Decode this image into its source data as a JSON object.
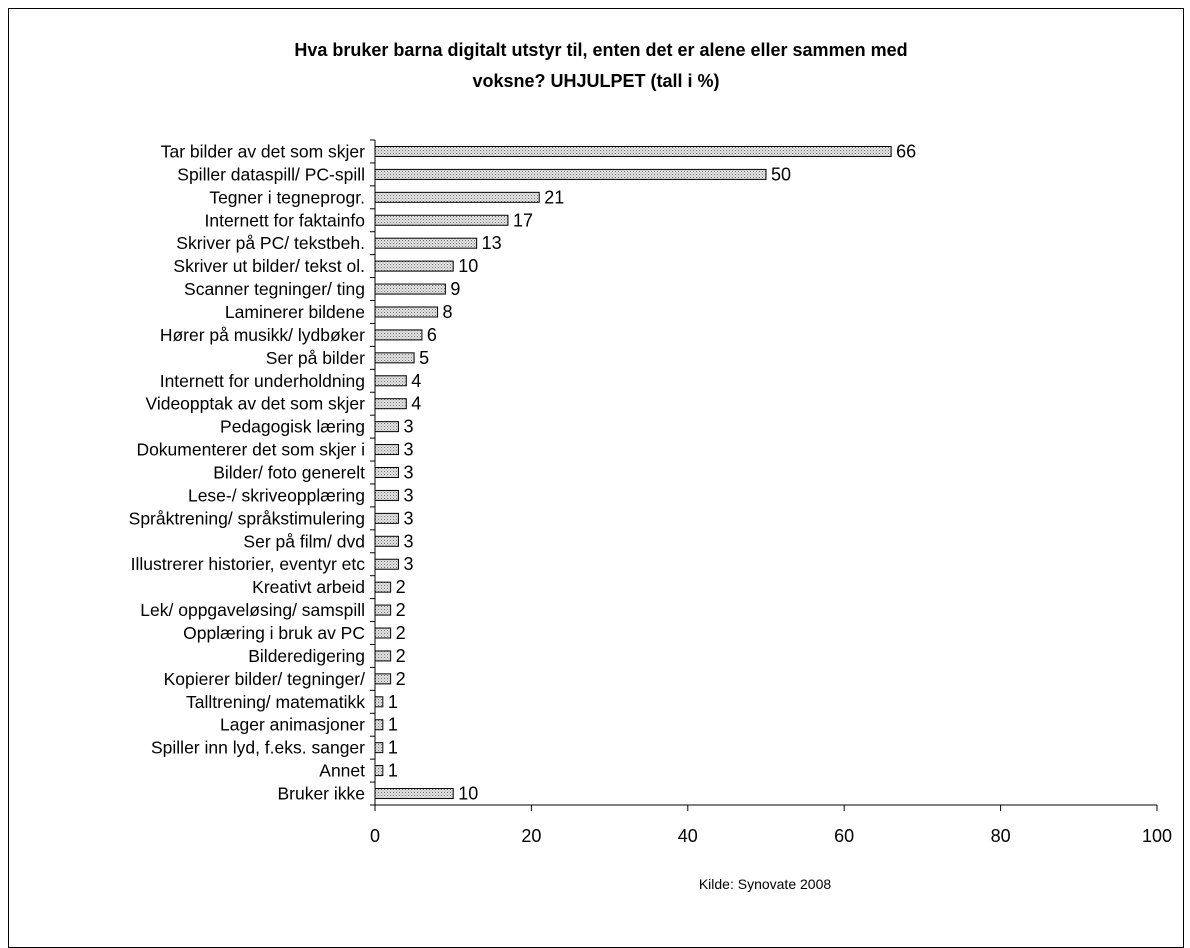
{
  "chart_data": {
    "type": "bar",
    "orientation": "horizontal",
    "title_lines": [
      "Hva bruker barna digitalt utstyr til, enten det er alene eller sammen med",
      "voksne? UHJULPET (tall i %)"
    ],
    "categories": [
      "Tar bilder av det som skjer",
      "Spiller dataspill/ PC-spill",
      "Tegner i tegneprogr.",
      "Internett for faktainfo",
      "Skriver på PC/ tekstbeh.",
      "Skriver ut bilder/ tekst ol.",
      "Scanner tegninger/ ting",
      "Laminerer bildene",
      "Hører på musikk/ lydbøker",
      "Ser på bilder",
      "Internett for underholdning",
      "Videopptak av det som skjer",
      "Pedagogisk læring",
      "Dokumenterer det som skjer i",
      "Bilder/ foto generelt",
      "Lese-/ skriveopplæring",
      "Språktrening/ språkstimulering",
      "Ser på film/ dvd",
      "Illustrerer historier, eventyr etc",
      "Kreativt arbeid",
      "Lek/ oppgaveløsing/ samspill",
      "Opplæring i bruk av PC",
      "Bilderedigering",
      "Kopierer bilder/ tegninger/",
      "Talltrening/ matematikk",
      "Lager animasjoner",
      "Spiller inn lyd, f.eks. sanger",
      "Annet",
      "Bruker ikke"
    ],
    "values": [
      66,
      50,
      21,
      17,
      13,
      10,
      9,
      8,
      6,
      5,
      4,
      4,
      3,
      3,
      3,
      3,
      3,
      3,
      3,
      2,
      2,
      2,
      2,
      2,
      1,
      1,
      1,
      1,
      10
    ],
    "xlim": [
      0,
      100
    ],
    "xticks": [
      0,
      20,
      40,
      60,
      80,
      100
    ],
    "source": "Kilde: Synovate 2008",
    "bar_fill": "#d9d9d9",
    "bar_stroke": "#000000",
    "grid": false,
    "legend": "none"
  }
}
